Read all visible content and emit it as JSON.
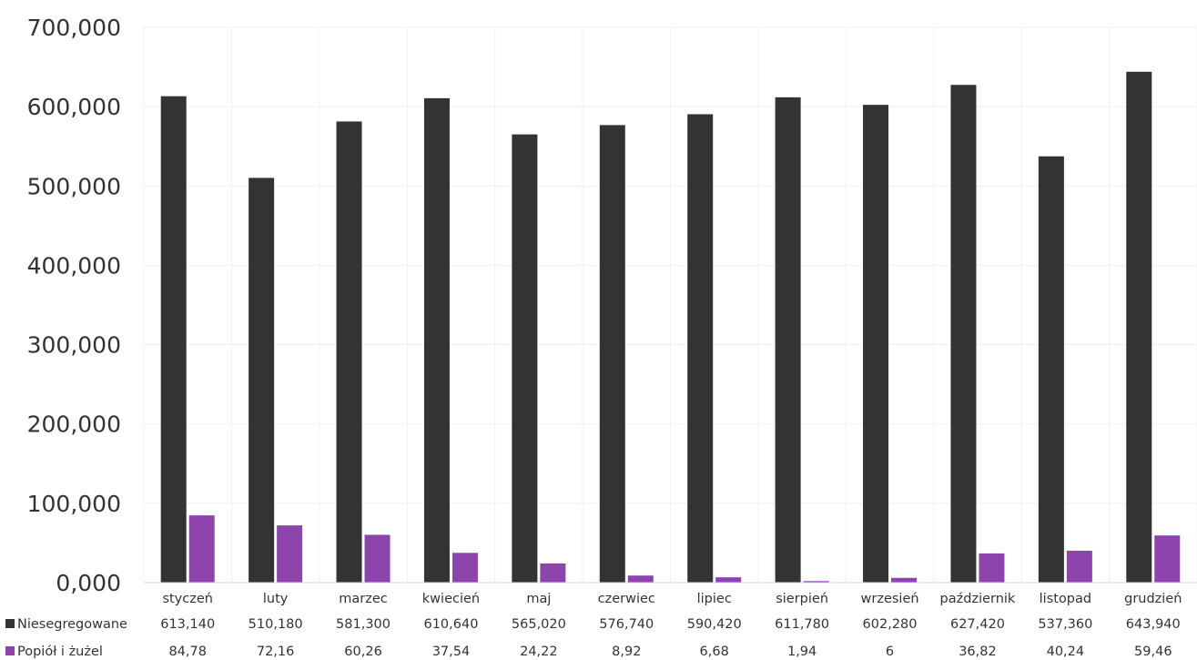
{
  "chart_data": {
    "type": "bar",
    "title": "",
    "xlabel": "",
    "ylabel": "",
    "ylim": [
      0,
      700000
    ],
    "ytick_labels": [
      "0,000",
      "100,000",
      "200,000",
      "300,000",
      "400,000",
      "500,000",
      "600,000",
      "700,000"
    ],
    "grid": true,
    "legend": "data-table-left",
    "categories": [
      "styczeń",
      "luty",
      "marzec",
      "kwiecień",
      "maj",
      "czerwiec",
      "lipiec",
      "sierpień",
      "wrzesień",
      "październik",
      "listopad",
      "grudzień"
    ],
    "series": [
      {
        "name": "Niesegregowane",
        "color": "#333333",
        "values": [
          613140,
          510180,
          581300,
          610640,
          565020,
          576740,
          590420,
          611780,
          602280,
          627420,
          537360,
          643940
        ],
        "labels": [
          "613,140",
          "510,180",
          "581,300",
          "610,640",
          "565,020",
          "576,740",
          "590,420",
          "611,780",
          "602,280",
          "627,420",
          "537,360",
          "643,940"
        ]
      },
      {
        "name": "Popiół i żużel",
        "color": "#8e44ad",
        "values": [
          84780,
          72160,
          60260,
          37540,
          24220,
          8920,
          6680,
          1940,
          6000,
          36820,
          40240,
          59460
        ],
        "labels": [
          "84,78",
          "72,16",
          "60,26",
          "37,54",
          "24,22",
          "8,92",
          "6,68",
          "1,94",
          "6",
          "36,82",
          "40,24",
          "59,46"
        ]
      }
    ]
  }
}
